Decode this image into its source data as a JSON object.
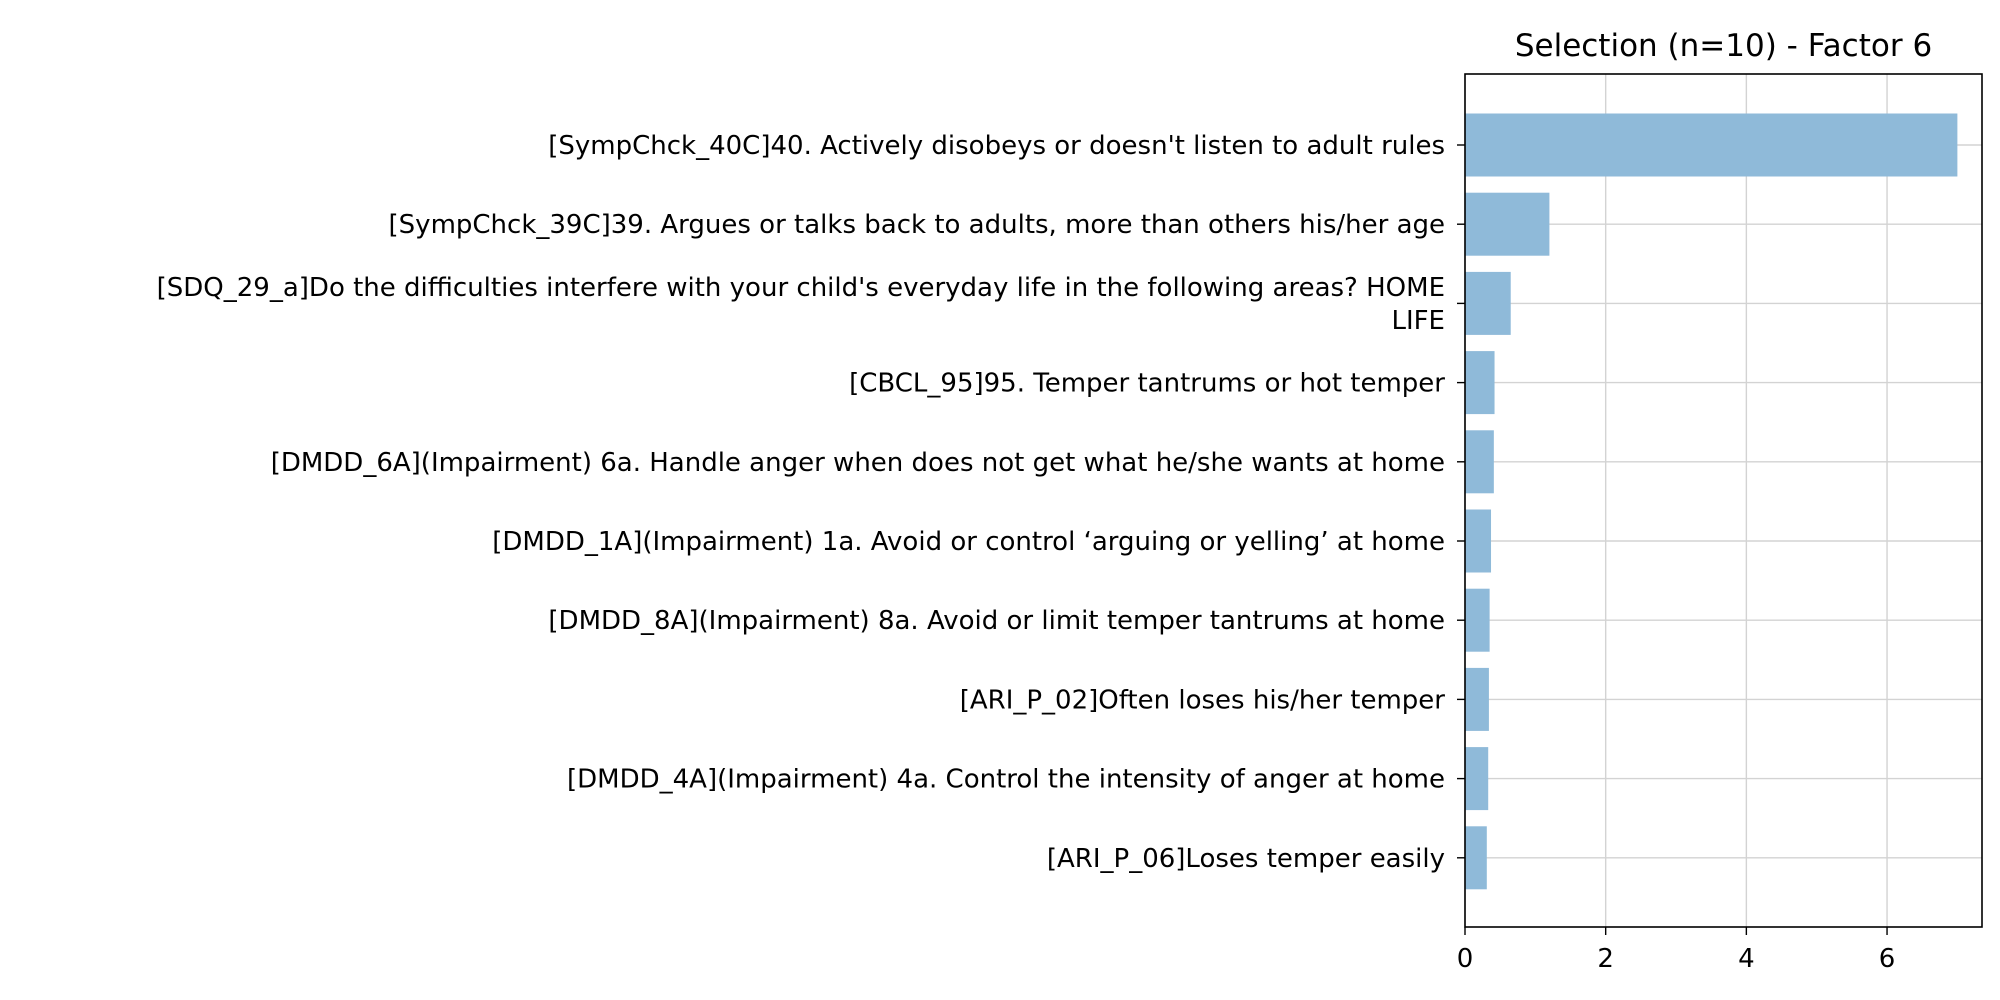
{
  "chart_data": {
    "type": "bar",
    "orientation": "horizontal",
    "title": "Selection (n=10) - Factor 6",
    "xlabel": "",
    "ylabel": "",
    "categories": [
      "[SympChck_40C]40. Actively disobeys or doesn't listen to adult rules",
      "[SympChck_39C]39. Argues or talks back to adults, more than others his/her age",
      "[SDQ_29_a]Do the difficulties interfere with your child's everyday life in the following areas? HOME LIFE",
      "[CBCL_95]95. Temper tantrums or hot temper",
      "[DMDD_6A](Impairment) 6a. Handle anger when does not get what he/she wants at home",
      "[DMDD_1A](Impairment) 1a. Avoid or control ‘arguing or yelling’ at home",
      "[DMDD_8A](Impairment) 8a. Avoid or limit temper tantrums at home",
      "[ARI_P_02]Often loses his/her temper",
      "[DMDD_4A](Impairment) 4a. Control the intensity of anger at home",
      "[ARI_P_06]Loses temper easily"
    ],
    "category_lines": [
      [
        "[SympChck_40C]40. Actively disobeys or doesn't listen to adult rules"
      ],
      [
        "[SympChck_39C]39. Argues or talks back to adults, more than others his/her age"
      ],
      [
        "[SDQ_29_a]Do the difficulties interfere with your child's everyday life in the following areas? HOME",
        "LIFE"
      ],
      [
        "[CBCL_95]95. Temper tantrums or hot temper"
      ],
      [
        "[DMDD_6A](Impairment) 6a. Handle anger when does not get what he/she wants at home"
      ],
      [
        "[DMDD_1A](Impairment) 1a. Avoid or control ‘arguing or yelling’ at home"
      ],
      [
        "[DMDD_8A](Impairment) 8a. Avoid or limit temper tantrums at home"
      ],
      [
        "[ARI_P_02]Often loses his/her temper"
      ],
      [
        "[DMDD_4A](Impairment) 4a. Control the intensity of anger at home"
      ],
      [
        "[ARI_P_06]Loses temper easily"
      ]
    ],
    "values": [
      7.0,
      1.2,
      0.65,
      0.42,
      0.41,
      0.37,
      0.35,
      0.34,
      0.33,
      0.31
    ],
    "xlim": [
      0,
      7.35
    ],
    "xticks": [
      0,
      2,
      4,
      6
    ],
    "grid": true,
    "legend": "none",
    "colors": {
      "bar": "#8fbad9",
      "grid": "#d3d3d3",
      "axis": "#000000"
    }
  }
}
